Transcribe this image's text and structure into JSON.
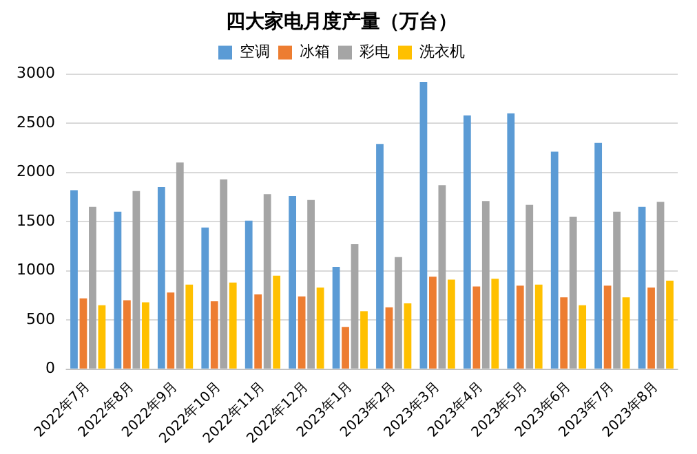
{
  "chart_data": {
    "type": "bar",
    "title": "四大家电月度产量（万台）",
    "categories": [
      "2022年7月",
      "2022年8月",
      "2022年9月",
      "2022年10月",
      "2022年11月",
      "2022年12月",
      "2023年1月",
      "2023年2月",
      "2023年3月",
      "2023年4月",
      "2023年5月",
      "2023年6月",
      "2023年7月",
      "2023年8月"
    ],
    "series": [
      {
        "name": "空调",
        "color": "#5b9bd5",
        "values": [
          1820,
          1600,
          1850,
          1440,
          1510,
          1760,
          1040,
          2290,
          2920,
          2580,
          2600,
          2210,
          2300,
          1650
        ]
      },
      {
        "name": "冰箱",
        "color": "#ed7d31",
        "values": [
          720,
          700,
          780,
          690,
          760,
          740,
          430,
          630,
          940,
          840,
          850,
          730,
          850,
          830
        ]
      },
      {
        "name": "彩电",
        "color": "#a5a5a5",
        "values": [
          1650,
          1810,
          2100,
          1930,
          1780,
          1720,
          1270,
          1140,
          1870,
          1710,
          1670,
          1550,
          1600,
          1700
        ]
      },
      {
        "name": "洗衣机",
        "color": "#ffc000",
        "values": [
          650,
          680,
          860,
          880,
          950,
          830,
          590,
          670,
          910,
          920,
          860,
          650,
          730,
          900
        ]
      }
    ],
    "ylim": [
      0,
      3000
    ],
    "yticks": [
      0,
      500,
      1000,
      1500,
      2000,
      2500,
      3000
    ],
    "grid": "y",
    "legend": "top"
  }
}
